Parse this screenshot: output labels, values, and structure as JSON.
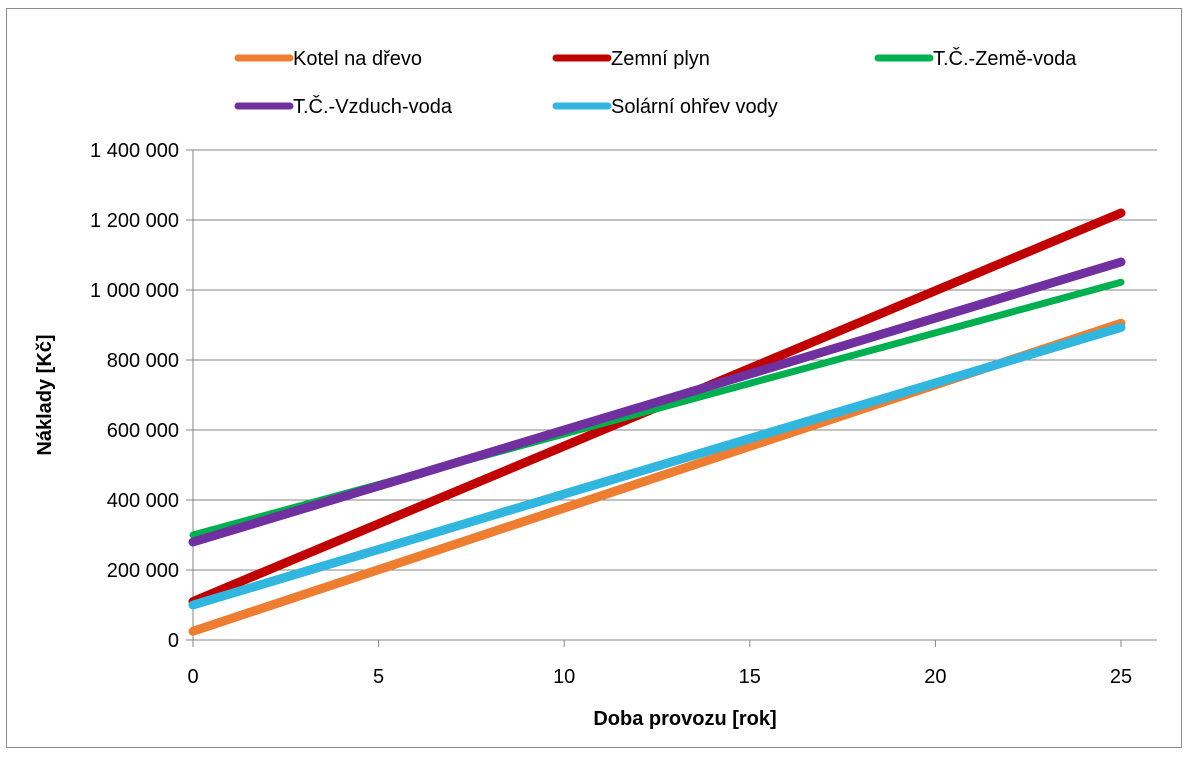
{
  "chart_data": {
    "type": "line",
    "xlabel": "Doba provozu [rok]",
    "ylabel": "Náklady [Kč]",
    "xlim": [
      0,
      25
    ],
    "ylim": [
      0,
      1400000
    ],
    "x_ticks": [
      0,
      5,
      10,
      15,
      20,
      25
    ],
    "y_ticks": [
      0,
      200000,
      400000,
      600000,
      800000,
      1000000,
      1200000,
      1400000
    ],
    "x_tick_labels": [
      "0",
      "5",
      "10",
      "15",
      "20",
      "25"
    ],
    "y_tick_labels": [
      "0",
      "200 000",
      "400 000",
      "600 000",
      "800 000",
      "1 000 000",
      "1 200 000",
      "1 400 000"
    ],
    "grid": "horizontal",
    "legend_position": "top",
    "series": [
      {
        "name": "Kotel na dřevo",
        "color": "#ED7D31",
        "x": [
          0,
          25
        ],
        "y": [
          25000,
          905000
        ]
      },
      {
        "name": "Zemní plyn",
        "color": "#C00000",
        "x": [
          0,
          25
        ],
        "y": [
          110000,
          1220000
        ]
      },
      {
        "name": "T.Č.-Země-voda",
        "color": "#00B050",
        "x": [
          0,
          25
        ],
        "y": [
          300000,
          1022000
        ]
      },
      {
        "name": "T.Č.-Vzduch-voda",
        "color": "#7030A0",
        "x": [
          0,
          25
        ],
        "y": [
          280000,
          1080000
        ]
      },
      {
        "name": "Solární ohřev vody",
        "color": "#31B6E0",
        "x": [
          0,
          25
        ],
        "y": [
          100000,
          893000
        ]
      }
    ]
  }
}
